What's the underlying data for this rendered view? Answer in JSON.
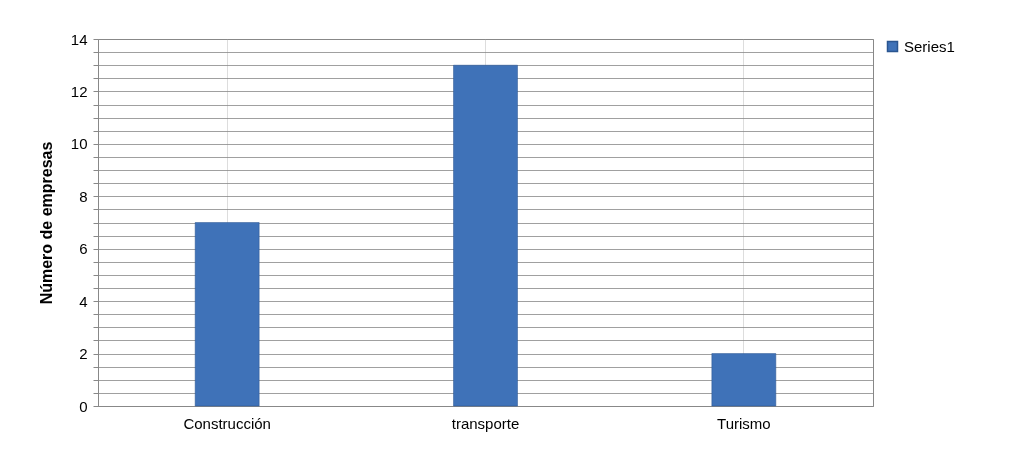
{
  "chart_data": {
    "type": "bar",
    "ylabel": "Número de empresas",
    "categories": [
      "Construcción",
      "transporte",
      "Turismo"
    ],
    "series": [
      {
        "name": "Series1",
        "color": "#3f72b8",
        "values": [
          7,
          13,
          2
        ]
      }
    ],
    "ylim": [
      0,
      14
    ],
    "yticks": [
      0,
      {
        "value": 0.5,
        "label": null
      },
      {
        "value": 1,
        "label": null
      },
      {
        "value": 1.5,
        "label": null
      },
      2,
      {
        "value": 2.5,
        "label": null
      },
      {
        "value": 3,
        "label": null
      },
      {
        "value": 3.5,
        "label": null
      },
      4,
      {
        "value": 4.5,
        "label": null
      },
      {
        "value": 5,
        "label": null
      },
      {
        "value": 5.5,
        "label": null
      },
      6,
      {
        "value": 6.5,
        "label": null
      },
      {
        "value": 7,
        "label": null
      },
      {
        "value": 7.5,
        "label": null
      },
      8,
      {
        "value": 8.5,
        "label": null
      },
      {
        "value": 9,
        "label": null
      },
      {
        "value": 9.5,
        "label": null
      },
      10,
      {
        "value": 10.5,
        "label": null
      },
      {
        "value": 11,
        "label": null
      },
      {
        "value": 11.5,
        "label": null
      },
      12,
      {
        "value": 12.5,
        "label": null
      },
      {
        "value": 13,
        "label": null
      },
      {
        "value": 13.5,
        "label": null
      },
      14
    ],
    "grid": true,
    "legend": "right"
  }
}
